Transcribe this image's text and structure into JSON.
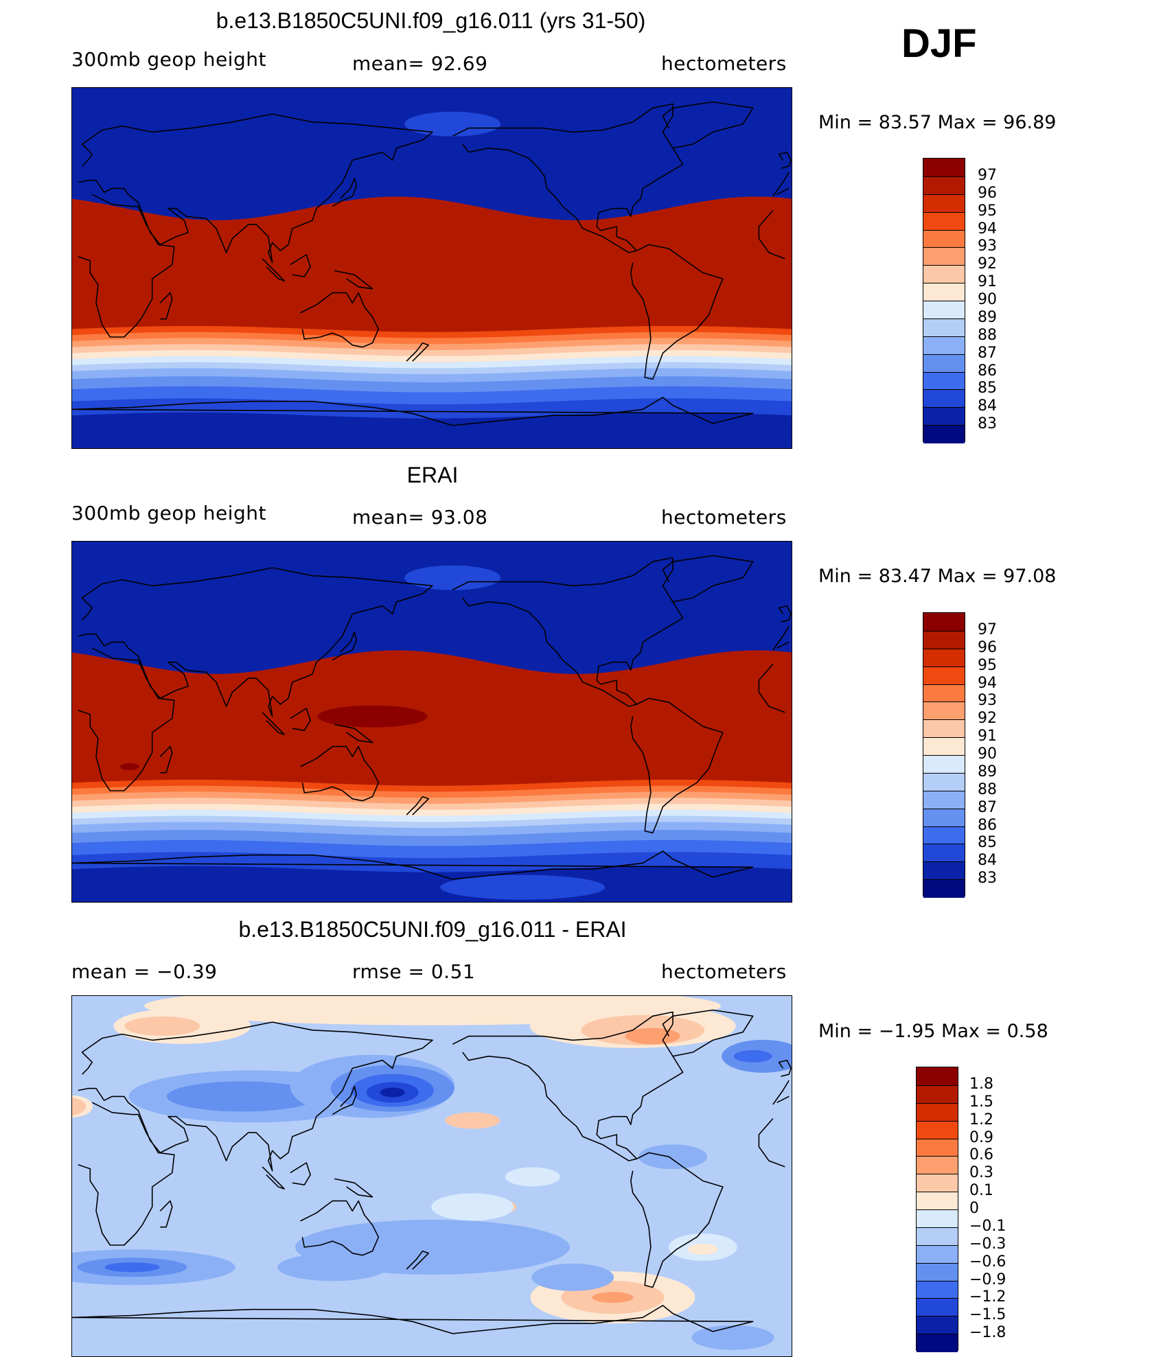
{
  "season": "DJF",
  "panels": [
    {
      "title": "b.e13.B1850C5UNI.f09_g16.011 (yrs 31-50)",
      "left": "300mb  geop  height",
      "center": "mean=   92.69",
      "right": "hectometers",
      "minmax": "Min  =    83.57  Max  =    96.89",
      "colorbar": {
        "labels": [
          "97",
          "96",
          "95",
          "94",
          "93",
          "92",
          "91",
          "90",
          "89",
          "88",
          "87",
          "86",
          "85",
          "84",
          "83"
        ],
        "colors": [
          "#8c0000",
          "#b21a00",
          "#d42d00",
          "#f04a10",
          "#fc7a40",
          "#fda070",
          "#fcc8a8",
          "#fde8d4",
          "#d8eafc",
          "#b4cef8",
          "#8cb0f6",
          "#6490f0",
          "#3e6cee",
          "#2148d8",
          "#0a22a8",
          "#000a80"
        ]
      },
      "map_type": "absolute",
      "extra_features": false
    },
    {
      "title": "ERAI",
      "left": "300mb  geop  height",
      "center": "mean=   93.08",
      "right": "hectometers",
      "minmax": "Min  =    83.47  Max  =    97.08",
      "colorbar": {
        "labels": [
          "97",
          "96",
          "95",
          "94",
          "93",
          "92",
          "91",
          "90",
          "89",
          "88",
          "87",
          "86",
          "85",
          "84",
          "83"
        ],
        "colors": [
          "#8c0000",
          "#b21a00",
          "#d42d00",
          "#f04a10",
          "#fc7a40",
          "#fda070",
          "#fcc8a8",
          "#fde8d4",
          "#d8eafc",
          "#b4cef8",
          "#8cb0f6",
          "#6490f0",
          "#3e6cee",
          "#2148d8",
          "#0a22a8",
          "#000a80"
        ]
      },
      "map_type": "absolute",
      "extra_features": true
    },
    {
      "title": "b.e13.B1850C5UNI.f09_g16.011 - ERAI",
      "left": "mean  =    −0.39",
      "center": "rmse  =     0.51",
      "right": "hectometers",
      "minmax": "Min  =    −1.95  Max  =     0.58",
      "colorbar": {
        "labels": [
          "1.8",
          "1.5",
          "1.2",
          "0.9",
          "0.6",
          "0.3",
          "0.1",
          "0",
          "−0.1",
          "−0.3",
          "−0.6",
          "−0.9",
          "−1.2",
          "−1.5",
          "−1.8"
        ],
        "colors": [
          "#8c0000",
          "#b21a00",
          "#d42d00",
          "#f04a10",
          "#fc7a40",
          "#fda070",
          "#fcc8a8",
          "#fde8d4",
          "#d8eafc",
          "#b4cef8",
          "#8cb0f6",
          "#6490f0",
          "#3e6cee",
          "#2148d8",
          "#0a22a8",
          "#000a80"
        ]
      },
      "map_type": "difference"
    }
  ]
}
